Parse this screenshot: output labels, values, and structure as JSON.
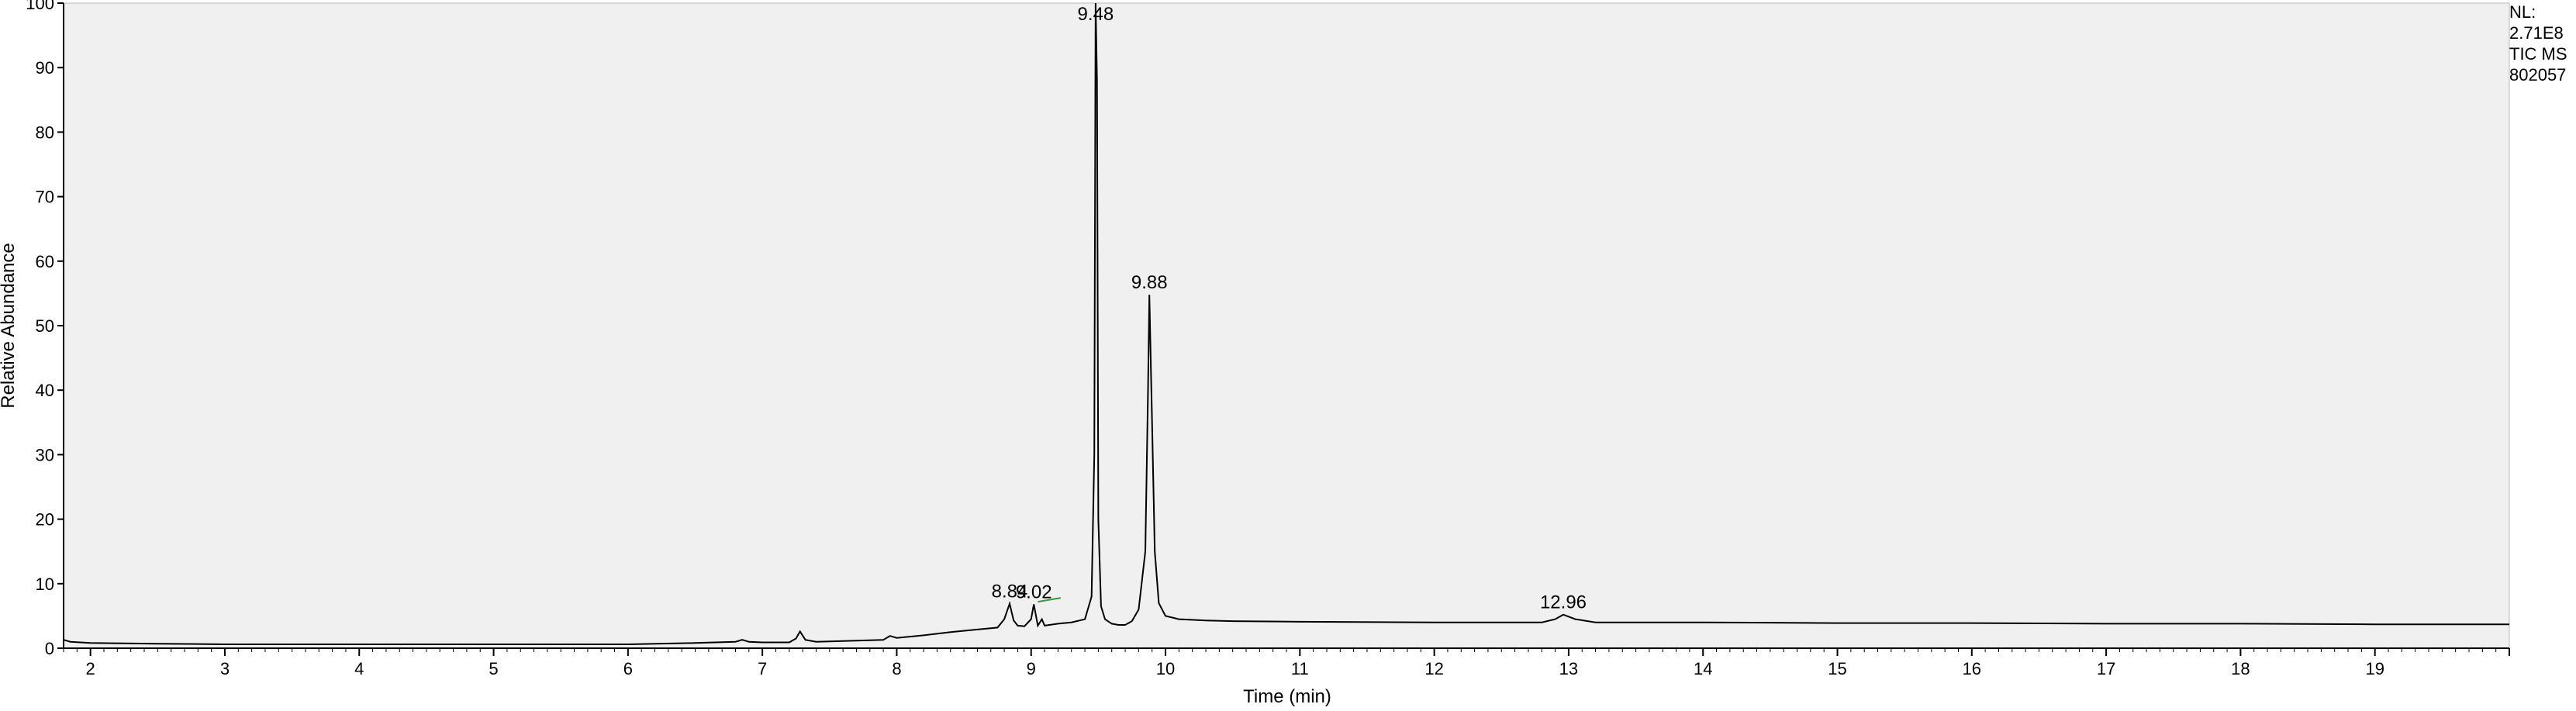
{
  "info": {
    "nl_label": "NL:",
    "nl_value": "2.71E8",
    "scan_filter": "TIC  MS",
    "sample_id": "802057"
  },
  "colors": {
    "plot_background": "#f0f0f0",
    "trace": "#000000",
    "annotation_mark": "#3a9a3a"
  },
  "chart_data": {
    "type": "line",
    "xlabel": "Time (min)",
    "ylabel": "Relative Abundance",
    "xlim": [
      1.8,
      20.0
    ],
    "ylim": [
      0,
      100
    ],
    "x_ticks": [
      2,
      3,
      4,
      5,
      6,
      7,
      8,
      9,
      10,
      11,
      12,
      13,
      14,
      15,
      16,
      17,
      18,
      19
    ],
    "y_ticks": [
      0,
      10,
      20,
      30,
      40,
      50,
      60,
      70,
      80,
      90,
      100
    ],
    "grid": false,
    "series": [
      {
        "x": [
          1.8,
          1.85,
          2.0,
          2.5,
          3.0,
          4.0,
          5.0,
          6.0,
          6.5,
          6.8,
          6.85,
          6.9,
          7.0,
          7.2,
          7.25,
          7.28,
          7.32,
          7.4,
          7.6,
          7.9,
          7.95,
          8.0,
          8.2,
          8.4,
          8.6,
          8.75,
          8.8,
          8.84,
          8.87,
          8.9,
          8.95,
          9.0,
          9.02,
          9.05,
          9.08,
          9.1,
          9.2,
          9.3,
          9.4,
          9.45,
          9.47,
          9.48,
          9.49,
          9.5,
          9.52,
          9.55,
          9.6,
          9.65,
          9.7,
          9.75,
          9.8,
          9.85,
          9.87,
          9.88,
          9.9,
          9.92,
          9.95,
          10.0,
          10.1,
          10.3,
          10.5,
          11.0,
          12.0,
          12.8,
          12.9,
          12.96,
          13.05,
          13.2,
          14.0,
          15.0,
          16.0,
          17.0,
          18.0,
          19.0,
          20.0
        ],
        "y": [
          1.3,
          1.0,
          0.8,
          0.7,
          0.6,
          0.6,
          0.6,
          0.6,
          0.8,
          1.0,
          1.3,
          1.0,
          0.9,
          0.9,
          1.5,
          2.6,
          1.3,
          1.0,
          1.1,
          1.3,
          1.9,
          1.6,
          2.0,
          2.5,
          2.9,
          3.2,
          4.5,
          6.9,
          4.3,
          3.5,
          3.4,
          4.5,
          6.8,
          3.5,
          4.5,
          3.5,
          3.8,
          4.0,
          4.5,
          8.0,
          30.0,
          100.0,
          88.0,
          20.0,
          6.5,
          4.5,
          3.8,
          3.6,
          3.6,
          4.2,
          6.0,
          15.0,
          40.0,
          54.8,
          35.0,
          15.0,
          7.0,
          5.0,
          4.5,
          4.3,
          4.2,
          4.1,
          4.0,
          4.0,
          4.5,
          5.2,
          4.5,
          4.0,
          4.0,
          3.9,
          3.9,
          3.8,
          3.8,
          3.7,
          3.7
        ]
      }
    ],
    "peak_labels": [
      {
        "x": 8.84,
        "y": 6.9,
        "text": "8.84"
      },
      {
        "x": 9.02,
        "y": 6.8,
        "text": "9.02"
      },
      {
        "x": 9.48,
        "y": 100.0,
        "text": "9.48"
      },
      {
        "x": 9.88,
        "y": 54.8,
        "text": "9.88"
      },
      {
        "x": 12.96,
        "y": 5.2,
        "text": "12.96"
      }
    ]
  }
}
